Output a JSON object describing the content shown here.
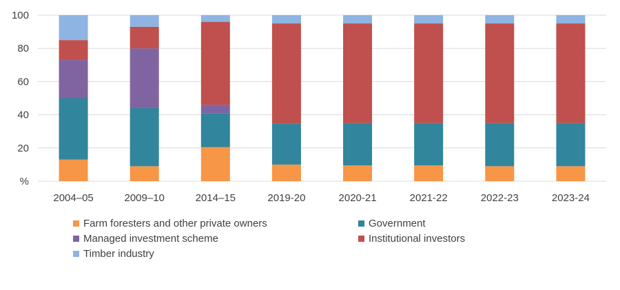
{
  "chart_data": {
    "type": "bar",
    "stacked": true,
    "categories": [
      "2004–05",
      "2009–10",
      "2014–15",
      "2019-20",
      "2020-21",
      "2021-22",
      "2022-23",
      "2023-24"
    ],
    "y_ticks": [
      "%",
      "20",
      "40",
      "60",
      "80",
      "100"
    ],
    "ylim": [
      0,
      100
    ],
    "grid": true,
    "legend_position": "bottom",
    "series": [
      {
        "name": "Farm foresters and other private owners",
        "color": "#F79646",
        "values": [
          13,
          9,
          20.5,
          10,
          9.5,
          9.5,
          9,
          9
        ]
      },
      {
        "name": "Government",
        "color": "#31859C",
        "values": [
          37,
          35,
          20.5,
          24.5,
          25.5,
          25.5,
          26,
          26
        ]
      },
      {
        "name": "Managed investment scheme",
        "color": "#8064A2",
        "values": [
          23,
          36,
          5,
          0,
          0,
          0,
          0,
          0
        ]
      },
      {
        "name": "Institutional investors",
        "color": "#C0504D",
        "values": [
          12,
          13,
          50,
          60.5,
          60,
          60,
          60,
          60
        ]
      },
      {
        "name": "Timber industry",
        "color": "#8EB4E3",
        "values": [
          15,
          7,
          4,
          5,
          5,
          5,
          5,
          5
        ]
      }
    ]
  }
}
